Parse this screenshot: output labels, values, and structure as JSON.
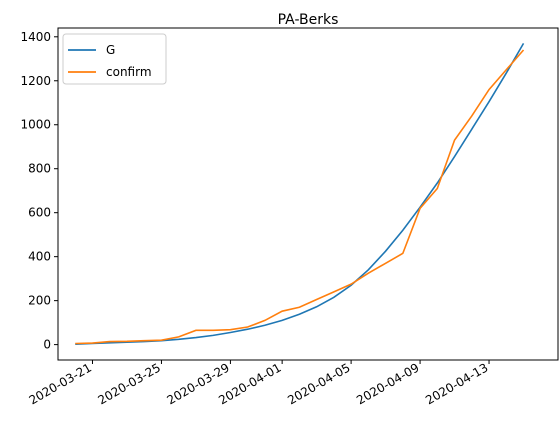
{
  "chart_data": {
    "type": "line",
    "title": "PA-Berks",
    "xlabel": "",
    "ylabel": "",
    "x_ticks": [
      "2020-03-21",
      "2020-03-25",
      "2020-03-29",
      "2020-04-01",
      "2020-04-05",
      "2020-04-09",
      "2020-04-13"
    ],
    "y_ticks": [
      0,
      200,
      400,
      600,
      800,
      1000,
      1200,
      1400
    ],
    "x_range": [
      "2020-03-19",
      "2020-04-17"
    ],
    "ylim": [
      -70,
      1440
    ],
    "grid": false,
    "legend_position": "top-left",
    "x": [
      "2020-03-20",
      "2020-03-21",
      "2020-03-22",
      "2020-03-23",
      "2020-03-24",
      "2020-03-25",
      "2020-03-26",
      "2020-03-27",
      "2020-03-28",
      "2020-03-29",
      "2020-03-30",
      "2020-03-31",
      "2020-04-01",
      "2020-04-02",
      "2020-04-03",
      "2020-04-04",
      "2020-04-05",
      "2020-04-06",
      "2020-04-07",
      "2020-04-08",
      "2020-04-09",
      "2020-04-10",
      "2020-04-11",
      "2020-04-12",
      "2020-04-13",
      "2020-04-14",
      "2020-04-15"
    ],
    "series": [
      {
        "name": "G",
        "color": "#1f77b4",
        "values": [
          2,
          5,
          8,
          11,
          14,
          18,
          24,
          32,
          42,
          55,
          70,
          88,
          110,
          138,
          172,
          215,
          270,
          340,
          425,
          520,
          625,
          735,
          855,
          980,
          1105,
          1235,
          1370
        ]
      },
      {
        "name": "confirm",
        "color": "#ff7f0e",
        "values": [
          5,
          7,
          14,
          15,
          18,
          20,
          35,
          65,
          65,
          68,
          80,
          110,
          152,
          170,
          205,
          240,
          275,
          325,
          370,
          415,
          620,
          710,
          930,
          1040,
          1160,
          1250,
          1340
        ]
      }
    ]
  }
}
